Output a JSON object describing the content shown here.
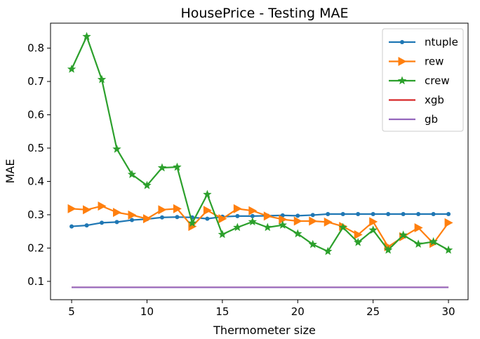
{
  "chart_data": {
    "type": "line",
    "title": "HousePrice - Testing MAE",
    "xlabel": "Thermometer size",
    "ylabel": "MAE",
    "xlim": [
      3.6,
      31.3
    ],
    "ylim": [
      0.045,
      0.875
    ],
    "xticks": [
      5,
      10,
      15,
      20,
      25,
      30
    ],
    "yticks": [
      0.1,
      0.2,
      0.3,
      0.4,
      0.5,
      0.6,
      0.7,
      0.8
    ],
    "grid": false,
    "legend_position": "top-right",
    "x": [
      5,
      6,
      7,
      8,
      9,
      10,
      11,
      12,
      13,
      14,
      15,
      16,
      17,
      18,
      19,
      20,
      21,
      22,
      23,
      24,
      25,
      26,
      27,
      28,
      29,
      30
    ],
    "series": [
      {
        "name": "ntuple",
        "color": "#1f77b4",
        "marker": "dot",
        "values": [
          0.265,
          0.268,
          0.276,
          0.278,
          0.284,
          0.287,
          0.292,
          0.293,
          0.292,
          0.288,
          0.294,
          0.296,
          0.296,
          0.297,
          0.298,
          0.297,
          0.299,
          0.302,
          0.302,
          0.302,
          0.302,
          0.302,
          0.302,
          0.302,
          0.302,
          0.302
        ]
      },
      {
        "name": "rew",
        "color": "#ff7f0e",
        "marker": "triangle-right",
        "values": [
          0.318,
          0.315,
          0.326,
          0.307,
          0.299,
          0.288,
          0.315,
          0.318,
          0.265,
          0.313,
          0.288,
          0.318,
          0.312,
          0.296,
          0.286,
          0.281,
          0.281,
          0.278,
          0.265,
          0.24,
          0.279,
          0.204,
          0.234,
          0.261,
          0.214,
          0.276
        ]
      },
      {
        "name": "crew",
        "color": "#2ca02c",
        "marker": "star",
        "values": [
          0.737,
          0.835,
          0.706,
          0.497,
          0.421,
          0.388,
          0.441,
          0.443,
          0.275,
          0.361,
          0.241,
          0.262,
          0.279,
          0.262,
          0.269,
          0.243,
          0.211,
          0.19,
          0.262,
          0.217,
          0.254,
          0.194,
          0.239,
          0.212,
          0.219,
          0.194
        ]
      },
      {
        "name": "xgb",
        "color": "#d62728",
        "marker": "none",
        "values": [
          0.082,
          0.082,
          0.082,
          0.082,
          0.082,
          0.082,
          0.082,
          0.082,
          0.082,
          0.082,
          0.082,
          0.082,
          0.082,
          0.082,
          0.082,
          0.082,
          0.082,
          0.082,
          0.082,
          0.082,
          0.082,
          0.082,
          0.082,
          0.082,
          0.082,
          0.082
        ]
      },
      {
        "name": "gb",
        "color": "#9467bd",
        "marker": "none",
        "values": [
          0.082,
          0.082,
          0.082,
          0.082,
          0.082,
          0.082,
          0.082,
          0.082,
          0.082,
          0.082,
          0.082,
          0.082,
          0.082,
          0.082,
          0.082,
          0.082,
          0.082,
          0.082,
          0.082,
          0.082,
          0.082,
          0.082,
          0.082,
          0.082,
          0.082,
          0.082
        ]
      }
    ]
  }
}
